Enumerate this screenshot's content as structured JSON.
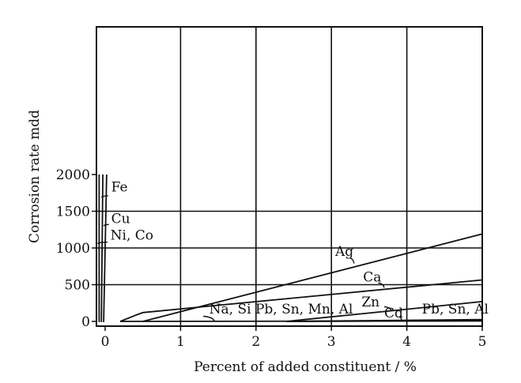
{
  "chart_data": {
    "type": "line",
    "xlabel": "Percent of added constituent / %",
    "ylabel": "Corrosion rate mdd",
    "xlim": [
      -0.2,
      5
    ],
    "ylim": [
      -40,
      2000
    ],
    "grid": true,
    "xticks": [
      {
        "value": 0,
        "label": "0"
      },
      {
        "value": 1,
        "label": "1"
      },
      {
        "value": 2,
        "label": "2"
      },
      {
        "value": 3,
        "label": "3"
      },
      {
        "value": 4,
        "label": "4"
      },
      {
        "value": 5,
        "label": "5"
      }
    ],
    "yticks": [
      {
        "value": 0,
        "label": "0"
      },
      {
        "value": 500,
        "label": "500"
      },
      {
        "value": 1000,
        "label": "1000"
      },
      {
        "value": 1500,
        "label": "1500"
      },
      {
        "value": 2000,
        "label": "2000"
      }
    ],
    "series": [
      {
        "name": "Fe",
        "points": [
          [
            -0.08,
            -10
          ],
          [
            -0.08,
            2000
          ]
        ]
      },
      {
        "name": "Cu",
        "points": [
          [
            -0.05,
            -10
          ],
          [
            -0.03,
            2000
          ]
        ]
      },
      {
        "name": "Ni, Co",
        "points": [
          [
            -0.02,
            -10
          ],
          [
            0.02,
            2000
          ]
        ]
      },
      {
        "name": "Ag",
        "points": [
          [
            0.5,
            0
          ],
          [
            5,
            1190
          ]
        ]
      },
      {
        "name": "Ca",
        "points": [
          [
            0.2,
            0
          ],
          [
            0.42,
            90
          ],
          [
            0.5,
            120
          ],
          [
            1.3,
            200
          ],
          [
            5,
            565
          ]
        ]
      },
      {
        "name": "Zn",
        "points": [
          [
            2.4,
            0
          ],
          [
            5,
            270
          ]
        ]
      },
      {
        "name": "Na, Si Pb, Sn, Mn, Al",
        "points": [
          [
            0.2,
            0
          ],
          [
            5,
            5
          ]
        ]
      },
      {
        "name": "Cd",
        "points": [
          [
            2.4,
            0
          ],
          [
            5,
            25
          ]
        ]
      },
      {
        "name": "Pb, Sn, Al",
        "points": [
          [
            2.4,
            0
          ],
          [
            5,
            10
          ]
        ]
      }
    ],
    "annotations": [
      {
        "text": "Fe",
        "x": 0.08,
        "y": 1770,
        "lx": [
          0.04,
          -0.05
        ],
        "ly": [
          1710,
          1690
        ]
      },
      {
        "text": "Cu",
        "x": 0.08,
        "y": 1340,
        "lx": [
          0.05,
          -0.02
        ],
        "ly": [
          1320,
          1300
        ]
      },
      {
        "text": "Ni, Co",
        "x": 0.07,
        "y": 1115,
        "lx": [
          0.03,
          -0.1
        ],
        "ly": [
          1080,
          1060
        ]
      },
      {
        "text": "Ag",
        "x": 3.05,
        "y": 895,
        "lx": [
          3.25,
          3.3
        ],
        "ly": [
          860,
          790
        ]
      },
      {
        "text": "Ca",
        "x": 3.42,
        "y": 545,
        "lx": [
          3.62,
          3.7
        ],
        "ly": [
          525,
          460
        ]
      },
      {
        "text": "Zn",
        "x": 3.4,
        "y": 205,
        "lx": [
          3.7,
          3.8
        ],
        "ly": [
          200,
          140
        ]
      },
      {
        "text": "Na, Si Pb, Sn, Mn, Al",
        "x": 1.38,
        "y": 105,
        "lx": [
          1.3,
          1.45
        ],
        "ly": [
          70,
          5
        ]
      },
      {
        "text": "Cd",
        "x": 3.7,
        "y": 55,
        "lx": [
          3.9,
          3.93
        ],
        "ly": [
          60,
          15
        ]
      },
      {
        "text": "Pb, Sn, Al",
        "x": 4.2,
        "y": 105,
        "lx": [],
        "ly": []
      }
    ]
  }
}
